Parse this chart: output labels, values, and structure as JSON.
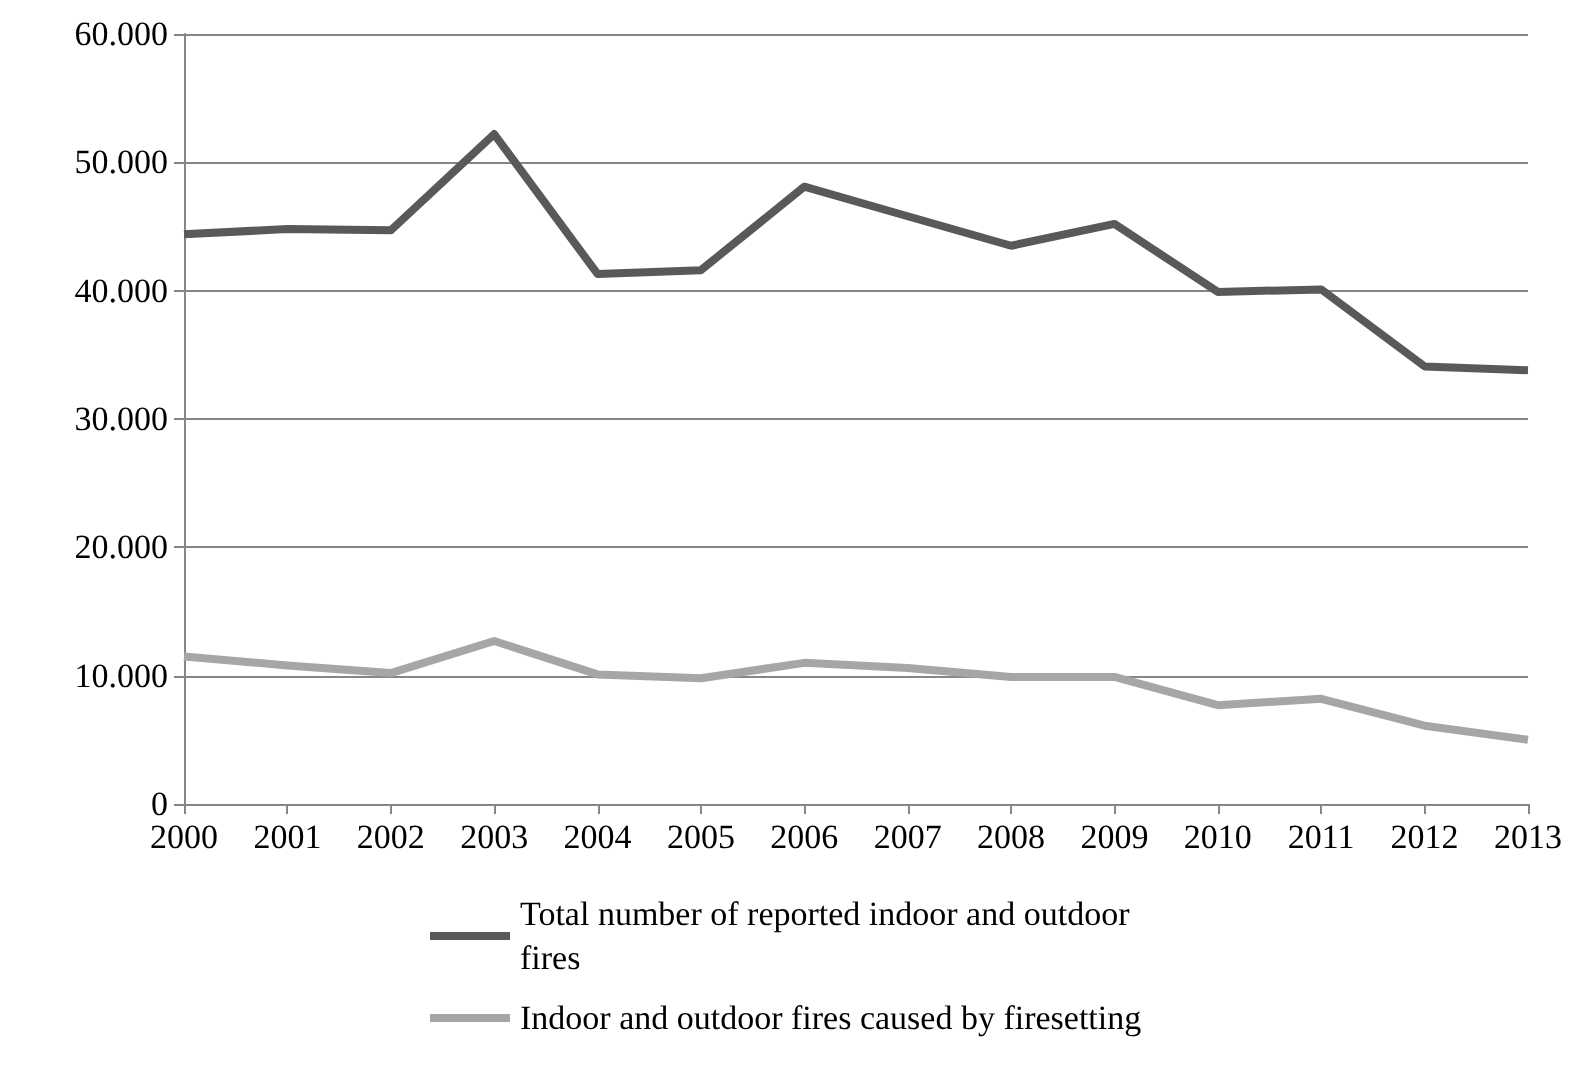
{
  "chart_data": {
    "type": "line",
    "categories": [
      "2000",
      "2001",
      "2002",
      "2003",
      "2004",
      "2005",
      "2006",
      "2007",
      "2008",
      "2009",
      "2010",
      "2011",
      "2012",
      "2013"
    ],
    "series": [
      {
        "name": "Total number of reported indoor and outdoor fires",
        "color": "#595959",
        "values": [
          44400,
          44800,
          44700,
          52200,
          41300,
          41600,
          48100,
          45800,
          43500,
          45200,
          39900,
          40100,
          34100,
          33800
        ]
      },
      {
        "name": "Indoor and outdoor fires caused by firesetting",
        "color": "#a6a6a6",
        "values": [
          11500,
          10800,
          10200,
          12700,
          10100,
          9800,
          11000,
          10600,
          9900,
          9900,
          7700,
          8200,
          6100,
          5000
        ]
      }
    ],
    "ylim": [
      0,
      60000
    ],
    "yticks": [
      {
        "value": 0,
        "label": "0"
      },
      {
        "value": 10000,
        "label": "10.000"
      },
      {
        "value": 20000,
        "label": "20.000"
      },
      {
        "value": 30000,
        "label": "30.000"
      },
      {
        "value": 40000,
        "label": "40.000"
      },
      {
        "value": 50000,
        "label": "50.000"
      },
      {
        "value": 60000,
        "label": "60.000"
      }
    ],
    "grid": "y",
    "legend": "bottom",
    "marker": "none",
    "line_style": "solid"
  }
}
